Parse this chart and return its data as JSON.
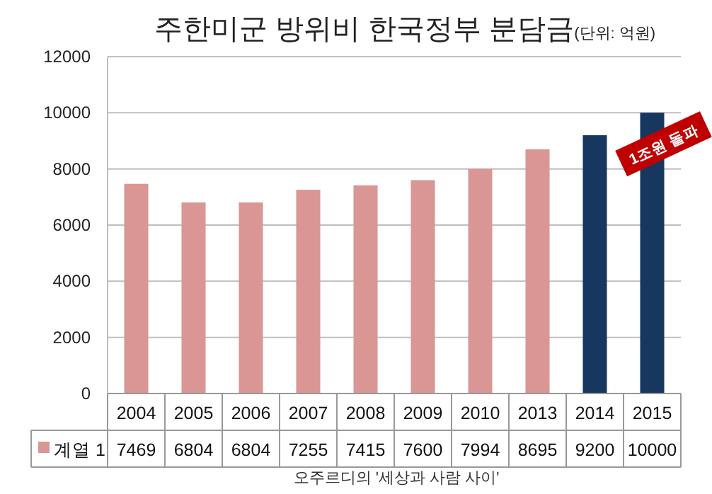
{
  "chart_data": {
    "type": "bar",
    "title": "주한미군 방위비 한국정부 분담금",
    "subtitle": "(단위: 억원)",
    "categories": [
      "2004",
      "2005",
      "2006",
      "2007",
      "2008",
      "2009",
      "2010",
      "2013",
      "2014",
      "2015"
    ],
    "series": [
      {
        "name": "계열 1",
        "color": "#d99694",
        "colors": [
          "#d99694",
          "#d99694",
          "#d99694",
          "#d99694",
          "#d99694",
          "#d99694",
          "#d99694",
          "#d99694",
          "#17375e",
          "#17375e"
        ],
        "values": [
          7469,
          6804,
          6804,
          7255,
          7415,
          7600,
          7994,
          8695,
          9200,
          10000
        ]
      }
    ],
    "ylim": [
      0,
      12000
    ],
    "yticks": [
      0,
      2000,
      4000,
      6000,
      8000,
      10000,
      12000
    ],
    "grid": "y",
    "legend": "bottom",
    "data_labels": true,
    "annotations": [
      {
        "text": "1조원 돌파",
        "x": "2015",
        "y": 10000
      },
      "오주르디의 '세상과 사람 사이'"
    ]
  }
}
